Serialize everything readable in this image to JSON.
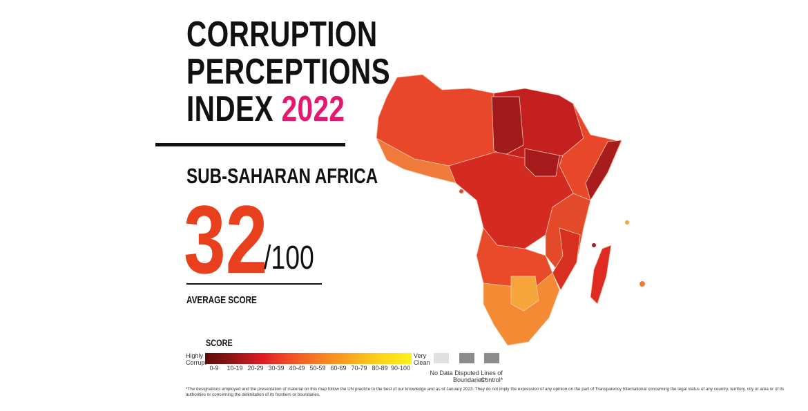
{
  "title": {
    "line1": "CORRUPTION",
    "line2": "PERCEPTIONS",
    "line3_prefix": "INDEX ",
    "year": "2022"
  },
  "region": "SUB-SAHARAN AFRICA",
  "score": {
    "value": "32",
    "out_of": "/100",
    "label": "AVERAGE SCORE"
  },
  "legend": {
    "title": "SCORE",
    "low_label": "Highly Corrupt",
    "high_label": "Very Clean",
    "ranges": [
      "0-9",
      "10-19",
      "20-29",
      "30-39",
      "40-49",
      "50-59",
      "60-69",
      "70-79",
      "80-89",
      "90-100"
    ],
    "extras": [
      "No Data",
      "Disputed Boundaries*",
      "Lines of Control*"
    ]
  },
  "footnote": "*The designations employed and the presentation of material on this map follow the UN practice to the best of our knowledge and as of January 2023. They do not imply the expression of any opinion on the part of Transparency International concerning the legal status of any country, territory, city or area or of its authorities or concerning the delimitation of its frontiers or boundaries.",
  "colors": {
    "accent": "#e8401c",
    "year": "#e6176f"
  }
}
